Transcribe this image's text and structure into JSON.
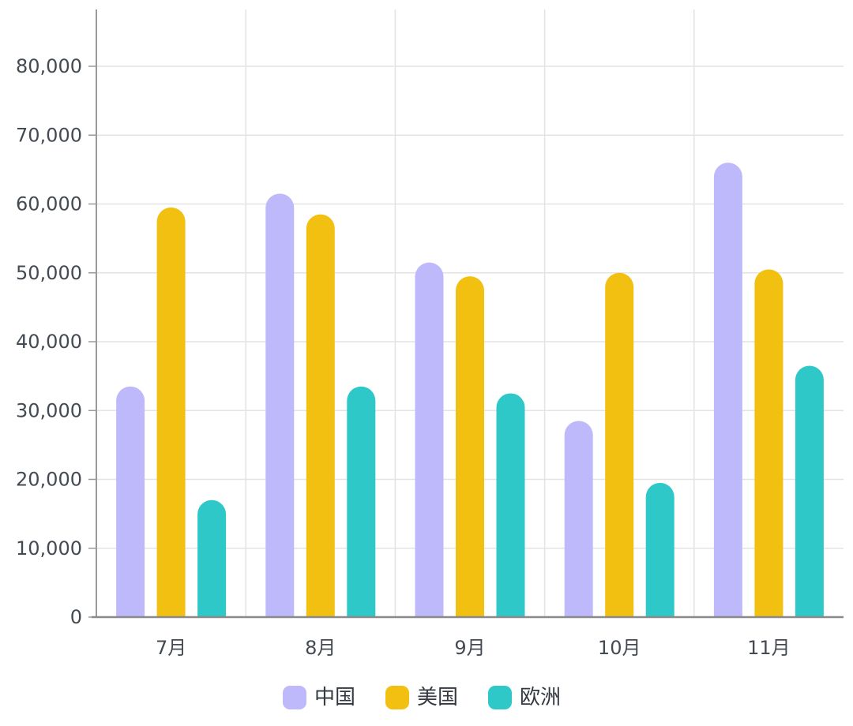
{
  "chart_data": {
    "type": "bar",
    "categories": [
      "7月",
      "8月",
      "9月",
      "10月",
      "11月"
    ],
    "series": [
      {
        "name": "中国",
        "color": "#bdb9fb",
        "values": [
          33500,
          61500,
          51500,
          28500,
          66000
        ]
      },
      {
        "name": "美国",
        "color": "#f2c011",
        "values": [
          59500,
          58500,
          49500,
          50000,
          50500
        ]
      },
      {
        "name": "欧洲",
        "color": "#2ec8c8",
        "values": [
          17000,
          33500,
          32500,
          19500,
          36500
        ]
      }
    ],
    "y_ticks": [
      "0",
      "10,000",
      "20,000",
      "30,000",
      "40,000",
      "50,000",
      "60,000",
      "70,000",
      "80,000"
    ],
    "ylim": [
      0,
      80000
    ],
    "grid": true,
    "legend_position": "bottom-center"
  }
}
